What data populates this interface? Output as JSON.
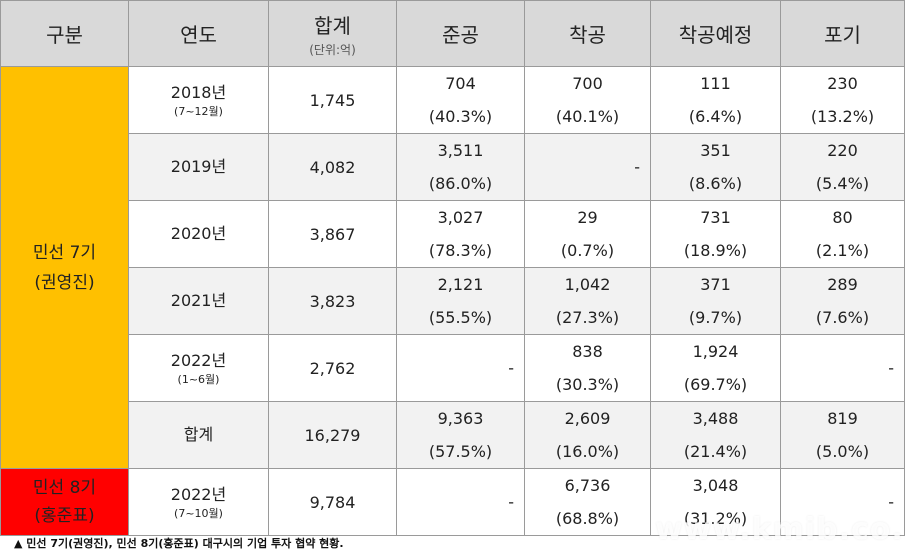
{
  "header": {
    "category": "구분",
    "year": "연도",
    "total": "합계",
    "total_unit": "(단위:억)",
    "completed": "준공",
    "started": "착공",
    "planned": "착공예정",
    "abandoned": "포기"
  },
  "group7": {
    "name": "민선 7기",
    "person": "(권영진)",
    "rows": [
      {
        "year": "2018년",
        "note": "(7~12월)",
        "total": "1,745",
        "completed": "704",
        "completed_pct": "(40.3%)",
        "started": "700",
        "started_pct": "(40.1%)",
        "planned": "111",
        "planned_pct": "(6.4%)",
        "abandoned": "230",
        "abandoned_pct": "(13.2%)"
      },
      {
        "year": "2019년",
        "total": "4,082",
        "completed": "3,511",
        "completed_pct": "(86.0%)",
        "started_dash": "-",
        "planned": "351",
        "planned_pct": "(8.6%)",
        "abandoned": "220",
        "abandoned_pct": "(5.4%)"
      },
      {
        "year": "2020년",
        "total": "3,867",
        "completed": "3,027",
        "completed_pct": "(78.3%)",
        "started": "29",
        "started_pct": "(0.7%)",
        "planned": "731",
        "planned_pct": "(18.9%)",
        "abandoned": "80",
        "abandoned_pct": "(2.1%)"
      },
      {
        "year": "2021년",
        "total": "3,823",
        "completed": "2,121",
        "completed_pct": "(55.5%)",
        "started": "1,042",
        "started_pct": "(27.3%)",
        "planned": "371",
        "planned_pct": "(9.7%)",
        "abandoned": "289",
        "abandoned_pct": "(7.6%)"
      },
      {
        "year": "2022년",
        "note": "(1~6월)",
        "total": "2,762",
        "completed_dash": "-",
        "started": "838",
        "started_pct": "(30.3%)",
        "planned": "1,924",
        "planned_pct": "(69.7%)",
        "abandoned_dash": "-"
      },
      {
        "year": "합계",
        "total": "16,279",
        "completed": "9,363",
        "completed_pct": "(57.5%)",
        "started": "2,609",
        "started_pct": "(16.0%)",
        "planned": "3,488",
        "planned_pct": "(21.4%)",
        "abandoned": "819",
        "abandoned_pct": "(5.0%)"
      }
    ]
  },
  "group8": {
    "name": "민선 8기",
    "person": "(홍준표)",
    "row": {
      "year": "2022년",
      "note": "(7~10월)",
      "total": "9,784",
      "completed_dash": "-",
      "started": "6,736",
      "started_pct": "(68.8%)",
      "planned": "3,048",
      "planned_pct": "(31.2%)",
      "abandoned_dash": "-"
    }
  },
  "caption": "▲ 민선 7기(권영진), 민선 8기(홍준표) 대구시의 기업 투자 협약 현황.",
  "watermark": "www.kmib.co.kr",
  "colors": {
    "header_bg": "#d9d9d9",
    "group7_bg": "#ffc000",
    "group8_bg": "#ff0000",
    "alt_row_bg": "#f2f2f2"
  }
}
